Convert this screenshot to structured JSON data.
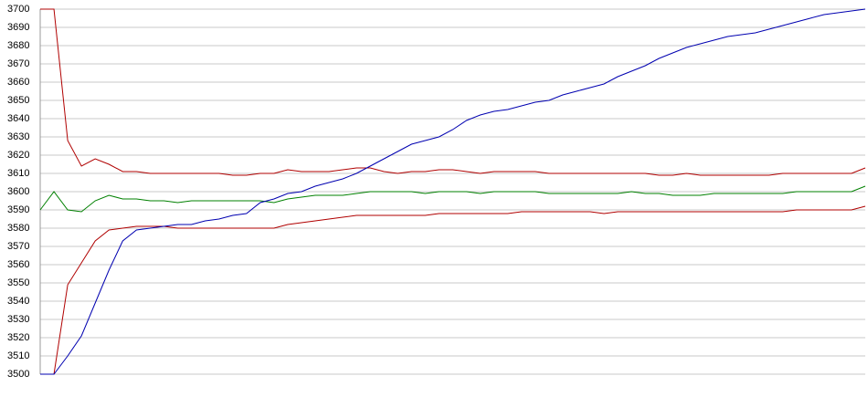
{
  "chart_data": {
    "type": "line",
    "ylim": [
      3500,
      3700
    ],
    "yticks": [
      3500,
      3510,
      3520,
      3530,
      3540,
      3550,
      3560,
      3570,
      3580,
      3590,
      3600,
      3610,
      3620,
      3630,
      3640,
      3650,
      3660,
      3670,
      3680,
      3690,
      3700
    ],
    "grid": true,
    "series": [
      {
        "color": "#b00000",
        "values": [
          3700,
          3700,
          3628,
          3614,
          3618,
          3615,
          3611,
          3611,
          3610,
          3610,
          3610,
          3610,
          3610,
          3610,
          3609,
          3609,
          3610,
          3610,
          3612,
          3611,
          3611,
          3611,
          3612,
          3613,
          3613,
          3611,
          3610,
          3611,
          3611,
          3612,
          3612,
          3611,
          3610,
          3611,
          3611,
          3611,
          3611,
          3610,
          3610,
          3610,
          3610,
          3610,
          3610,
          3610,
          3610,
          3609,
          3609,
          3610,
          3609,
          3609,
          3609,
          3609,
          3609,
          3609,
          3610,
          3610,
          3610,
          3610,
          3610,
          3610,
          3613
        ]
      },
      {
        "color": "#008000",
        "values": [
          3590,
          3600,
          3590,
          3589,
          3595,
          3598,
          3596,
          3596,
          3595,
          3595,
          3594,
          3595,
          3595,
          3595,
          3595,
          3595,
          3595,
          3594,
          3596,
          3597,
          3598,
          3598,
          3598,
          3599,
          3600,
          3600,
          3600,
          3600,
          3599,
          3600,
          3600,
          3600,
          3599,
          3600,
          3600,
          3600,
          3600,
          3599,
          3599,
          3599,
          3599,
          3599,
          3599,
          3600,
          3599,
          3599,
          3598,
          3598,
          3598,
          3599,
          3599,
          3599,
          3599,
          3599,
          3599,
          3600,
          3600,
          3600,
          3600,
          3600,
          3603
        ]
      },
      {
        "color": "#b00000",
        "values": [
          3500,
          3500,
          3549,
          3561,
          3573,
          3579,
          3580,
          3581,
          3581,
          3581,
          3580,
          3580,
          3580,
          3580,
          3580,
          3580,
          3580,
          3580,
          3582,
          3583,
          3584,
          3585,
          3586,
          3587,
          3587,
          3587,
          3587,
          3587,
          3587,
          3588,
          3588,
          3588,
          3588,
          3588,
          3588,
          3589,
          3589,
          3589,
          3589,
          3589,
          3589,
          3588,
          3589,
          3589,
          3589,
          3589,
          3589,
          3589,
          3589,
          3589,
          3589,
          3589,
          3589,
          3589,
          3589,
          3590,
          3590,
          3590,
          3590,
          3590,
          3592
        ]
      },
      {
        "color": "#0000b0",
        "values": [
          3500,
          3500,
          3510,
          3521,
          3539,
          3557,
          3573,
          3579,
          3580,
          3581,
          3582,
          3582,
          3584,
          3585,
          3587,
          3588,
          3594,
          3596,
          3599,
          3600,
          3603,
          3605,
          3607,
          3610,
          3614,
          3618,
          3622,
          3626,
          3628,
          3630,
          3634,
          3639,
          3642,
          3644,
          3645,
          3647,
          3649,
          3650,
          3653,
          3655,
          3657,
          3659,
          3663,
          3666,
          3669,
          3673,
          3676,
          3679,
          3681,
          3683,
          3685,
          3686,
          3687,
          3689,
          3691,
          3693,
          3695,
          3697,
          3698,
          3699,
          3700
        ]
      }
    ]
  }
}
